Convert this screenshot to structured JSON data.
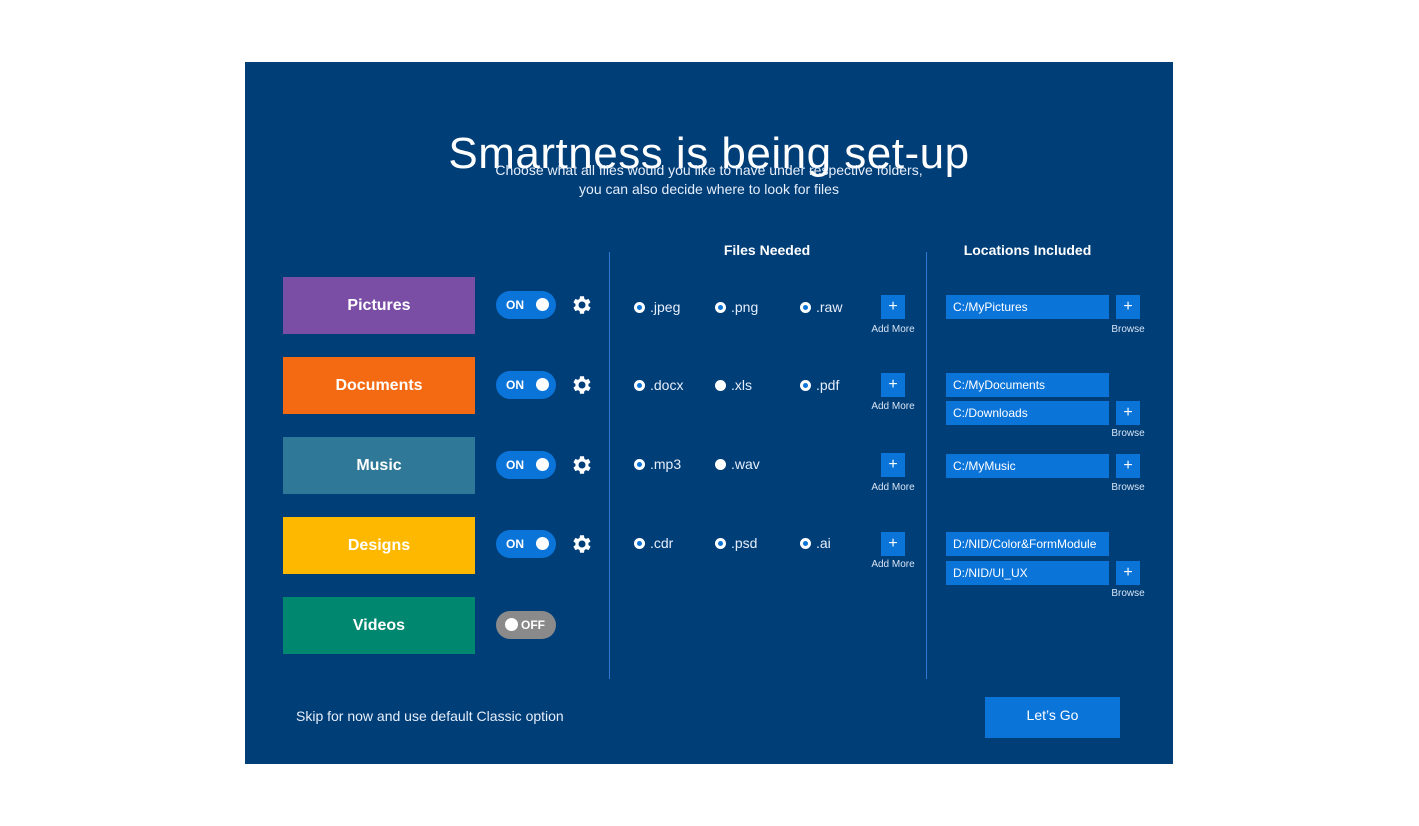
{
  "header": {
    "title": "Smartness is being set-up",
    "subtitle_line1": "Choose what all files would you like to have under respective folders,",
    "subtitle_line2": "you can also decide where to look for files"
  },
  "columns": {
    "files_needed": "Files Needed",
    "locations_included": "Locations Included"
  },
  "categories": [
    {
      "name": "Pictures",
      "color": "#7b4ea6",
      "toggle": "ON",
      "toggle_state": true
    },
    {
      "name": "Documents",
      "color": "#f46a13",
      "toggle": "ON",
      "toggle_state": true
    },
    {
      "name": "Music",
      "color": "#2f7898",
      "toggle": "ON",
      "toggle_state": true
    },
    {
      "name": "Designs",
      "color": "#ffb800",
      "toggle": "ON",
      "toggle_state": true
    },
    {
      "name": "Videos",
      "color": "#008770",
      "toggle": "OFF",
      "toggle_state": false
    }
  ],
  "files": {
    "pictures": [
      {
        "label": ".jpeg",
        "selected": true
      },
      {
        "label": ".png",
        "selected": true
      },
      {
        "label": ".raw",
        "selected": true
      }
    ],
    "documents": [
      {
        "label": ".docx",
        "selected": true
      },
      {
        "label": ".xls",
        "selected": false
      },
      {
        "label": ".pdf",
        "selected": true
      }
    ],
    "music": [
      {
        "label": ".mp3",
        "selected": true
      },
      {
        "label": ".wav",
        "selected": false
      }
    ],
    "designs": [
      {
        "label": ".cdr",
        "selected": true
      },
      {
        "label": ".psd",
        "selected": true
      },
      {
        "label": ".ai",
        "selected": true
      }
    ]
  },
  "add_more_label": "Add More",
  "plus_symbol": "+",
  "browse_label": "Browse",
  "locations": {
    "pictures": [
      "C:/MyPictures"
    ],
    "documents": [
      "C:/MyDocuments",
      "C:/Downloads"
    ],
    "music": [
      "C:/MyMusic"
    ],
    "designs": [
      "D:/NID/Color&FormModule",
      "D:/NID/UI_UX"
    ]
  },
  "footer": {
    "skip_text": "Skip for now and use default Classic option",
    "go_label": "Let’s Go"
  },
  "colors": {
    "panel": "#003e78",
    "accent": "#0b74d9",
    "off": "#8a8a8a"
  },
  "icons": {
    "settings": "gear-icon",
    "add": "plus-icon"
  }
}
